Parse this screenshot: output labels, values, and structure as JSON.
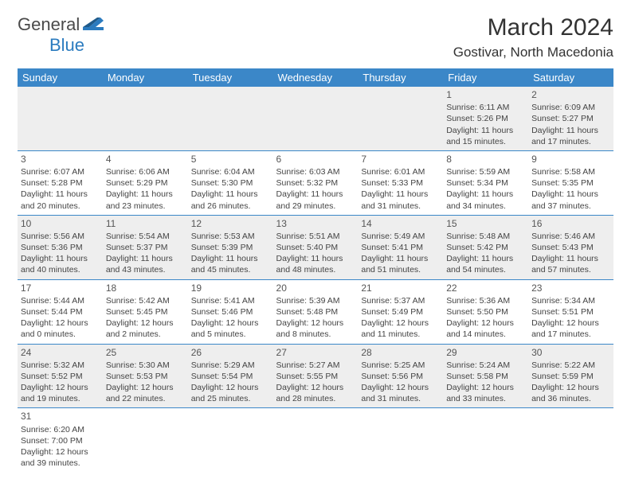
{
  "logo": {
    "part1": "General",
    "part2": "Blue"
  },
  "title": "March 2024",
  "location": "Gostivar, North Macedonia",
  "colors": {
    "header_bg": "#3b87c8",
    "header_text": "#ffffff",
    "row_alt_bg": "#eeeeee",
    "border": "#3b87c8",
    "logo_accent": "#2b7bbf"
  },
  "weekdays": [
    "Sunday",
    "Monday",
    "Tuesday",
    "Wednesday",
    "Thursday",
    "Friday",
    "Saturday"
  ],
  "weeks": [
    [
      null,
      null,
      null,
      null,
      null,
      {
        "n": "1",
        "sr": "Sunrise: 6:11 AM",
        "ss": "Sunset: 5:26 PM",
        "dl": "Daylight: 11 hours and 15 minutes."
      },
      {
        "n": "2",
        "sr": "Sunrise: 6:09 AM",
        "ss": "Sunset: 5:27 PM",
        "dl": "Daylight: 11 hours and 17 minutes."
      }
    ],
    [
      {
        "n": "3",
        "sr": "Sunrise: 6:07 AM",
        "ss": "Sunset: 5:28 PM",
        "dl": "Daylight: 11 hours and 20 minutes."
      },
      {
        "n": "4",
        "sr": "Sunrise: 6:06 AM",
        "ss": "Sunset: 5:29 PM",
        "dl": "Daylight: 11 hours and 23 minutes."
      },
      {
        "n": "5",
        "sr": "Sunrise: 6:04 AM",
        "ss": "Sunset: 5:30 PM",
        "dl": "Daylight: 11 hours and 26 minutes."
      },
      {
        "n": "6",
        "sr": "Sunrise: 6:03 AM",
        "ss": "Sunset: 5:32 PM",
        "dl": "Daylight: 11 hours and 29 minutes."
      },
      {
        "n": "7",
        "sr": "Sunrise: 6:01 AM",
        "ss": "Sunset: 5:33 PM",
        "dl": "Daylight: 11 hours and 31 minutes."
      },
      {
        "n": "8",
        "sr": "Sunrise: 5:59 AM",
        "ss": "Sunset: 5:34 PM",
        "dl": "Daylight: 11 hours and 34 minutes."
      },
      {
        "n": "9",
        "sr": "Sunrise: 5:58 AM",
        "ss": "Sunset: 5:35 PM",
        "dl": "Daylight: 11 hours and 37 minutes."
      }
    ],
    [
      {
        "n": "10",
        "sr": "Sunrise: 5:56 AM",
        "ss": "Sunset: 5:36 PM",
        "dl": "Daylight: 11 hours and 40 minutes."
      },
      {
        "n": "11",
        "sr": "Sunrise: 5:54 AM",
        "ss": "Sunset: 5:37 PM",
        "dl": "Daylight: 11 hours and 43 minutes."
      },
      {
        "n": "12",
        "sr": "Sunrise: 5:53 AM",
        "ss": "Sunset: 5:39 PM",
        "dl": "Daylight: 11 hours and 45 minutes."
      },
      {
        "n": "13",
        "sr": "Sunrise: 5:51 AM",
        "ss": "Sunset: 5:40 PM",
        "dl": "Daylight: 11 hours and 48 minutes."
      },
      {
        "n": "14",
        "sr": "Sunrise: 5:49 AM",
        "ss": "Sunset: 5:41 PM",
        "dl": "Daylight: 11 hours and 51 minutes."
      },
      {
        "n": "15",
        "sr": "Sunrise: 5:48 AM",
        "ss": "Sunset: 5:42 PM",
        "dl": "Daylight: 11 hours and 54 minutes."
      },
      {
        "n": "16",
        "sr": "Sunrise: 5:46 AM",
        "ss": "Sunset: 5:43 PM",
        "dl": "Daylight: 11 hours and 57 minutes."
      }
    ],
    [
      {
        "n": "17",
        "sr": "Sunrise: 5:44 AM",
        "ss": "Sunset: 5:44 PM",
        "dl": "Daylight: 12 hours and 0 minutes."
      },
      {
        "n": "18",
        "sr": "Sunrise: 5:42 AM",
        "ss": "Sunset: 5:45 PM",
        "dl": "Daylight: 12 hours and 2 minutes."
      },
      {
        "n": "19",
        "sr": "Sunrise: 5:41 AM",
        "ss": "Sunset: 5:46 PM",
        "dl": "Daylight: 12 hours and 5 minutes."
      },
      {
        "n": "20",
        "sr": "Sunrise: 5:39 AM",
        "ss": "Sunset: 5:48 PM",
        "dl": "Daylight: 12 hours and 8 minutes."
      },
      {
        "n": "21",
        "sr": "Sunrise: 5:37 AM",
        "ss": "Sunset: 5:49 PM",
        "dl": "Daylight: 12 hours and 11 minutes."
      },
      {
        "n": "22",
        "sr": "Sunrise: 5:36 AM",
        "ss": "Sunset: 5:50 PM",
        "dl": "Daylight: 12 hours and 14 minutes."
      },
      {
        "n": "23",
        "sr": "Sunrise: 5:34 AM",
        "ss": "Sunset: 5:51 PM",
        "dl": "Daylight: 12 hours and 17 minutes."
      }
    ],
    [
      {
        "n": "24",
        "sr": "Sunrise: 5:32 AM",
        "ss": "Sunset: 5:52 PM",
        "dl": "Daylight: 12 hours and 19 minutes."
      },
      {
        "n": "25",
        "sr": "Sunrise: 5:30 AM",
        "ss": "Sunset: 5:53 PM",
        "dl": "Daylight: 12 hours and 22 minutes."
      },
      {
        "n": "26",
        "sr": "Sunrise: 5:29 AM",
        "ss": "Sunset: 5:54 PM",
        "dl": "Daylight: 12 hours and 25 minutes."
      },
      {
        "n": "27",
        "sr": "Sunrise: 5:27 AM",
        "ss": "Sunset: 5:55 PM",
        "dl": "Daylight: 12 hours and 28 minutes."
      },
      {
        "n": "28",
        "sr": "Sunrise: 5:25 AM",
        "ss": "Sunset: 5:56 PM",
        "dl": "Daylight: 12 hours and 31 minutes."
      },
      {
        "n": "29",
        "sr": "Sunrise: 5:24 AM",
        "ss": "Sunset: 5:58 PM",
        "dl": "Daylight: 12 hours and 33 minutes."
      },
      {
        "n": "30",
        "sr": "Sunrise: 5:22 AM",
        "ss": "Sunset: 5:59 PM",
        "dl": "Daylight: 12 hours and 36 minutes."
      }
    ],
    [
      {
        "n": "31",
        "sr": "Sunrise: 6:20 AM",
        "ss": "Sunset: 7:00 PM",
        "dl": "Daylight: 12 hours and 39 minutes."
      },
      null,
      null,
      null,
      null,
      null,
      null
    ]
  ]
}
